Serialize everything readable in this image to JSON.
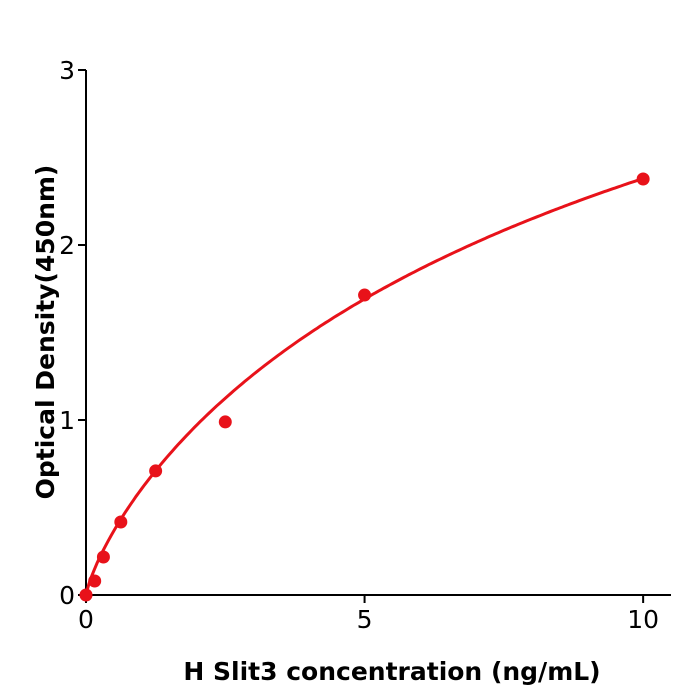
{
  "chart_data": {
    "type": "scatter",
    "title": "",
    "xlabel": "H  Slit3 concentration (ng/mL)",
    "ylabel": "Optical Density(450nm)",
    "xlim": [
      0,
      10.5
    ],
    "ylim": [
      0,
      3
    ],
    "x_ticks": [
      0,
      5,
      10
    ],
    "y_ticks": [
      0,
      1,
      2,
      3
    ],
    "x_tick_labels": [
      "0",
      "5",
      "10"
    ],
    "y_tick_labels": [
      "0",
      "1",
      "2",
      "3"
    ],
    "grid": false,
    "color": "#e8121a",
    "series": [
      {
        "x": [
          0,
          0.156,
          0.3125,
          0.625,
          1.25,
          2.5,
          5,
          10
        ],
        "y": [
          0.0,
          0.08,
          0.217,
          0.417,
          0.709,
          0.989,
          1.714,
          2.377
        ]
      }
    ],
    "fit_curve": "fitted standard curve"
  }
}
